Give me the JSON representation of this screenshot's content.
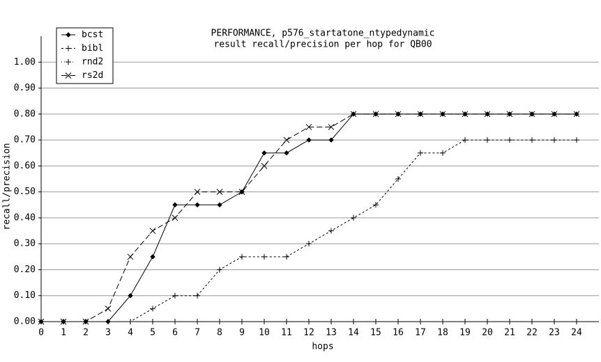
{
  "chart_data": {
    "type": "line",
    "title": "PERFORMANCE, p576_startatone_ntypedynamic",
    "subtitle": "result recall/precision per hop for QB00",
    "x_label": "hops",
    "y_label": "recall/precision",
    "x": [
      0,
      1,
      2,
      3,
      4,
      5,
      6,
      7,
      8,
      9,
      10,
      11,
      12,
      13,
      14,
      15,
      16,
      17,
      18,
      19,
      20,
      21,
      22,
      23,
      24
    ],
    "xlim": [
      0,
      25
    ],
    "xticks": [
      0,
      1,
      2,
      3,
      4,
      5,
      6,
      7,
      8,
      9,
      10,
      11,
      12,
      13,
      14,
      15,
      16,
      17,
      18,
      19,
      20,
      21,
      22,
      23,
      24
    ],
    "ylim": [
      0,
      1.1
    ],
    "yticks": [
      {
        "value": 0,
        "label": "0.00"
      },
      {
        "value": 0.1,
        "label": "0.10"
      },
      {
        "value": 0.2,
        "label": "0.20"
      },
      {
        "value": 0.3,
        "label": "0.30"
      },
      {
        "value": 0.4,
        "label": "0.40"
      },
      {
        "value": 0.5,
        "label": "0.50"
      },
      {
        "value": 0.6,
        "label": "0.60"
      },
      {
        "value": 0.7,
        "label": "0.70"
      },
      {
        "value": 0.8,
        "label": "0.80"
      },
      {
        "value": 0.9,
        "label": "0.90"
      },
      {
        "value": 1,
        "label": "1.00"
      }
    ],
    "grid": true,
    "legend": "top-left",
    "series": [
      {
        "name": "bcst",
        "color": "#000000",
        "dash": "solid",
        "marker": "diamond",
        "values": [
          0,
          0,
          0,
          0,
          0.1,
          0.25,
          0.45,
          0.45,
          0.45,
          0.5,
          0.65,
          0.65,
          0.7,
          0.7,
          0.8,
          0.8,
          0.8,
          0.8,
          0.8,
          0.8,
          0.8,
          0.8,
          0.8,
          0.8,
          0.8
        ]
      },
      {
        "name": "bibl",
        "color": "#000000",
        "dash": "dashed",
        "marker": "plus",
        "values": [
          0,
          0,
          0,
          0,
          0,
          0.05,
          0.1,
          0.1,
          0.2,
          0.25,
          0.25,
          0.25,
          0.3,
          0.35,
          0.4,
          0.45,
          0.55,
          0.65,
          0.65,
          0.7,
          0.7,
          0.7,
          0.7,
          0.7,
          0.7
        ]
      },
      {
        "name": "rnd2",
        "color": "#000000",
        "dash": "dotted",
        "marker": "plus",
        "values": [
          0,
          0,
          0,
          0,
          0,
          0,
          0,
          0,
          0,
          0,
          0,
          0,
          0,
          0,
          0,
          0,
          0,
          0,
          0,
          0,
          0,
          0,
          0,
          0,
          0
        ]
      },
      {
        "name": "rs2d",
        "color": "#000000",
        "dash": "longdash",
        "marker": "cross",
        "values": [
          0,
          0,
          0,
          0.05,
          0.25,
          0.35,
          0.4,
          0.5,
          0.5,
          0.5,
          0.6,
          0.7,
          0.75,
          0.75,
          0.8,
          0.8,
          0.8,
          0.8,
          0.8,
          0.8,
          0.8,
          0.8,
          0.8,
          0.8,
          0.8
        ]
      }
    ]
  }
}
